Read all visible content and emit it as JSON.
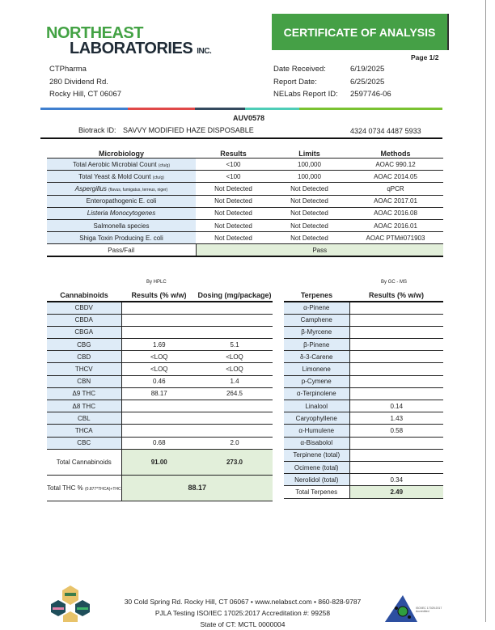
{
  "logo": {
    "line1": "NORTHEAST",
    "line2": "LABORATORIES",
    "suffix": "INC."
  },
  "title": "CERTIFICATE OF ANALYSIS",
  "page": "Page 1/2",
  "client": {
    "name": "CTPharma",
    "street": "280 Dividend Rd.",
    "city": "Rocky Hill, CT 06067"
  },
  "report": [
    {
      "label": "Date Received:",
      "value": "6/19/2025"
    },
    {
      "label": "Report Date:",
      "value": "6/25/2025"
    },
    {
      "label": "NELabs Report ID:",
      "value": "2597746-06"
    }
  ],
  "sample": {
    "code": "AUV0578",
    "biotrack_label": "Biotrack ID:",
    "product": "SAVVY MODIFIED HAZE DISPOSABLE",
    "biotrack_id": "4324 0734 4487 5933"
  },
  "micro": {
    "headers": [
      "Microbiology",
      "Results",
      "Limits",
      "Methods"
    ],
    "rows": [
      {
        "name": "Total Aerobic Microbial Count",
        "unit": "(cfu/g)",
        "result": "<100",
        "limit": "100,000",
        "method": "AOAC 990.12"
      },
      {
        "name": "Total Yeast & Mold Count",
        "unit": "(cfu/g)",
        "result": "<100",
        "limit": "100,000",
        "method": "AOAC 2014.05"
      },
      {
        "name": "Aspergillus",
        "unit": "(flavus, fumigatus, terreus, niger)",
        "result": "Not Detected",
        "limit": "Not Detected",
        "method": "qPCR"
      },
      {
        "name": "Enteropathogenic E. coli",
        "unit": "",
        "result": "Not Detected",
        "limit": "Not Detected",
        "method": "AOAC 2017.01"
      },
      {
        "name": "Listeria Monocytogenes",
        "unit": "",
        "result": "Not Detected",
        "limit": "Not Detected",
        "method": "AOAC 2016.08"
      },
      {
        "name": "Salmonella species",
        "unit": "",
        "result": "Not Detected",
        "limit": "Not Detected",
        "method": "AOAC 2016.01"
      },
      {
        "name": "Shiga Toxin Producing E. coli",
        "unit": "",
        "result": "Not Detected",
        "limit": "Not Detected",
        "method": "AOAC PTM#071903"
      }
    ],
    "passfail_label": "Pass/Fail",
    "passfail": "Pass"
  },
  "cannabinoids": {
    "method": "By HPLC",
    "headers": [
      "Cannabinoids",
      "Results (% w/w)",
      "Dosing (mg/package)"
    ],
    "rows": [
      [
        "CBDV",
        "",
        ""
      ],
      [
        "CBDA",
        "",
        ""
      ],
      [
        "CBGA",
        "",
        ""
      ],
      [
        "CBG",
        "1.69",
        "5.1"
      ],
      [
        "CBD",
        "<LOQ",
        "<LOQ"
      ],
      [
        "THCV",
        "<LOQ",
        "<LOQ"
      ],
      [
        "CBN",
        "0.46",
        "1.4"
      ],
      [
        "Δ9 THC",
        "88.17",
        "264.5"
      ],
      [
        "Δ8 THC",
        "",
        ""
      ],
      [
        "CBL",
        "",
        ""
      ],
      [
        "THCA",
        "",
        ""
      ],
      [
        "CBC",
        "0.68",
        "2.0"
      ]
    ],
    "total_label": "Total Cannabinoids",
    "total_result": "91.00",
    "total_dosing": "273.0",
    "thc_label": "Total THC %",
    "thc_formula": "(0.877*THCA)+THC",
    "thc_value": "88.17"
  },
  "terpenes": {
    "method": "By GC - MS",
    "headers": [
      "Terpenes",
      "Results (% w/w)"
    ],
    "rows": [
      [
        "α-Pinene",
        ""
      ],
      [
        "Camphene",
        ""
      ],
      [
        "β-Myrcene",
        ""
      ],
      [
        "β-Pinene",
        ""
      ],
      [
        "δ-3-Carene",
        ""
      ],
      [
        "Limonene",
        ""
      ],
      [
        "p-Cymene",
        ""
      ],
      [
        "α-Terpinolene",
        ""
      ],
      [
        "Linalool",
        "0.14"
      ],
      [
        "Caryophyllene",
        "1.43"
      ],
      [
        "α-Humulene",
        "0.58"
      ],
      [
        "α-Bisabolol",
        ""
      ],
      [
        "Terpinene (total)",
        ""
      ],
      [
        "Ocimene (total)",
        ""
      ],
      [
        "Nerolidol (total)",
        "0.34"
      ]
    ],
    "total_label": "Total Terpenes",
    "total": "2.49"
  },
  "footer": {
    "line1": "30 Cold Spring Rd. Rocky Hill, CT 06067  •  www.nelabsct.com  •  860-828-9787",
    "line2": "PJLA Testing ISO/IEC 17025:2017 Accreditation #: 99258",
    "line3": "State of CT: MCTL 0000004",
    "badge": "ISO/IEC 17025:2017 Accredited"
  }
}
